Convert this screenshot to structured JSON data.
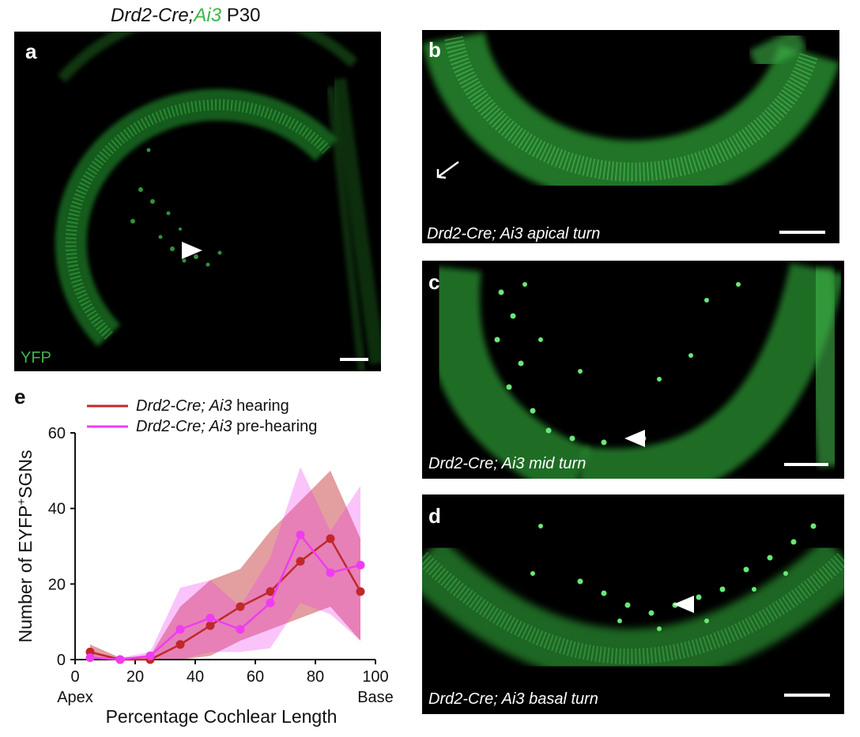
{
  "figure": {
    "title_prefix": "Drd2-Cre;",
    "title_green": "Ai3",
    "title_suffix": " P30",
    "panels": [
      {
        "label": "a",
        "caption": "",
        "channel": "YFP"
      },
      {
        "label": "b",
        "caption": "Drd2-Cre; Ai3 apical turn"
      },
      {
        "label": "c",
        "caption": "Drd2-Cre; Ai3 mid turn"
      },
      {
        "label": "d",
        "caption": "Drd2-Cre; Ai3 basal turn"
      },
      {
        "label": "e"
      }
    ],
    "colors": {
      "fluorescence": "#3fb54a",
      "hearing": "#c0282a",
      "prehearing": "#f03cf0"
    }
  },
  "chart_data": {
    "type": "line",
    "xlabel": "Percentage Cochlear Length",
    "ylabel_prefix": "Number of EYFP",
    "ylabel_sup": "+",
    "ylabel_suffix": "SGNs",
    "xlim": [
      0,
      100
    ],
    "ylim": [
      0,
      60
    ],
    "xticks": [
      0,
      20,
      40,
      60,
      80,
      100
    ],
    "yticks": [
      0,
      20,
      40,
      60
    ],
    "x_end_labels": [
      "Apex",
      "Base"
    ],
    "legend_position": "top",
    "x": [
      5,
      15,
      25,
      35,
      45,
      55,
      65,
      75,
      85,
      95
    ],
    "series": [
      {
        "name_italic": "Drd2-Cre; Ai3",
        "name_suffix": " hearing",
        "color": "#c0282a",
        "values": [
          2,
          0,
          0,
          4,
          9,
          14,
          18,
          26,
          32,
          18
        ],
        "upper": [
          4,
          0.5,
          1,
          14,
          21,
          24,
          34,
          42,
          50,
          32
        ],
        "lower": [
          0,
          0,
          0,
          0,
          1,
          5,
          8,
          11,
          14,
          5
        ]
      },
      {
        "name_italic": "Drd2-Cre; Ai3",
        "name_suffix": " pre-hearing",
        "color": "#f03cf0",
        "values": [
          0.5,
          0,
          1,
          8,
          11,
          8,
          15,
          33,
          23,
          25
        ],
        "upper": [
          1.5,
          0.5,
          2,
          19,
          21,
          14,
          27,
          51,
          34,
          46
        ],
        "lower": [
          0,
          0,
          0,
          0,
          2,
          2,
          3,
          15,
          12,
          5
        ]
      }
    ]
  }
}
